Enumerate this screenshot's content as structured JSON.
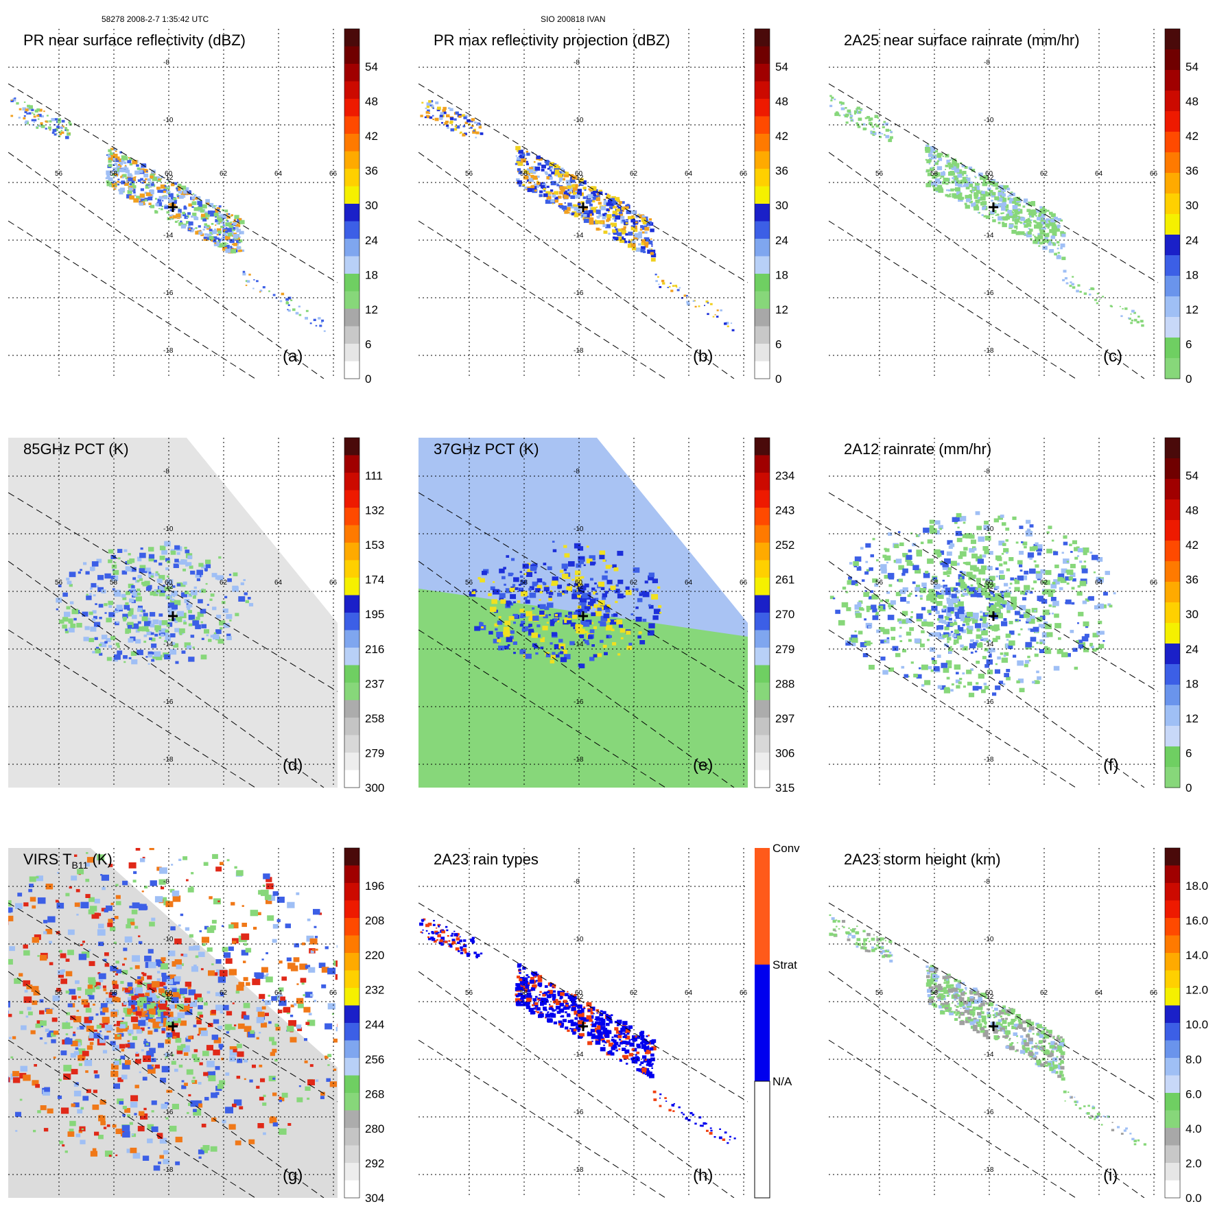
{
  "header": {
    "left": "58278 2008-2-7 1:35:42 UTC",
    "center": "SIO 200818 IVAN"
  },
  "chart_data": [
    {
      "id": "a",
      "type": "heatmap",
      "title": "PR near surface reflectivity (dBZ)",
      "panel_label": "(a)",
      "colorbar_ticks": [
        "54",
        "48",
        "42",
        "36",
        "30",
        "24",
        "18",
        "12",
        "6",
        "0"
      ],
      "colorbar_scale": "pr",
      "field": "pr_swath",
      "palette": [
        "#87d77a",
        "#3c5fe6",
        "#9fbff5",
        "#f0a020"
      ],
      "lon_labels": [
        "56",
        "58",
        "60",
        "62",
        "64",
        "66"
      ],
      "lat_labels": [
        "-8",
        "-10",
        "-12",
        "-14",
        "-16",
        "-18"
      ]
    },
    {
      "id": "b",
      "type": "heatmap",
      "title": "PR max reflectivity projection (dBZ)",
      "panel_label": "(b)",
      "colorbar_ticks": [
        "54",
        "48",
        "42",
        "36",
        "30",
        "24",
        "18",
        "12",
        "6",
        "0"
      ],
      "colorbar_scale": "pr",
      "field": "pr_swath",
      "palette": [
        "#1c2fd9",
        "#3c5fe6",
        "#9fbff5",
        "#f0a020",
        "#f0d020"
      ],
      "lon_labels": [
        "56",
        "58",
        "60",
        "62",
        "64",
        "66"
      ],
      "lat_labels": [
        "-8",
        "-10",
        "-12",
        "-14",
        "-16",
        "-18"
      ]
    },
    {
      "id": "c",
      "type": "heatmap",
      "title": "2A25 near surface rainrate (mm/hr)",
      "panel_label": "(c)",
      "colorbar_ticks": [
        "54",
        "48",
        "42",
        "36",
        "30",
        "24",
        "18",
        "12",
        "6",
        "0"
      ],
      "colorbar_scale": "rain",
      "field": "pr_swath",
      "palette": [
        "#87d77a",
        "#87d77a",
        "#9fbff5"
      ],
      "lon_labels": [
        "56",
        "58",
        "60",
        "62",
        "64",
        "66"
      ],
      "lat_labels": [
        "-8",
        "-10",
        "-12",
        "-14",
        "-16",
        "-18"
      ]
    },
    {
      "id": "d",
      "type": "heatmap",
      "title": "85GHz PCT (K)",
      "panel_label": "(d)",
      "colorbar_ticks": [
        "111",
        "132",
        "153",
        "174",
        "195",
        "216",
        "237",
        "258",
        "279",
        "300"
      ],
      "colorbar_scale": "pct",
      "field": "tmi_ring",
      "background": "#e4e4e4",
      "palette": [
        "#87d77a",
        "#9fbff5",
        "#3c5fe6"
      ],
      "lon_labels": [
        "56",
        "58",
        "60",
        "62",
        "64",
        "66"
      ],
      "lat_labels": [
        "-8",
        "-10",
        "-12",
        "-14",
        "-16",
        "-18"
      ]
    },
    {
      "id": "e",
      "type": "heatmap",
      "title": "37GHz PCT (K)",
      "panel_label": "(e)",
      "colorbar_ticks": [
        "234",
        "243",
        "252",
        "261",
        "270",
        "279",
        "288",
        "297",
        "306",
        "315"
      ],
      "colorbar_scale": "pct",
      "field": "tmi_full37",
      "background": "#a9c3f3",
      "palette": [
        "#1c2fd9",
        "#3c5fe6",
        "#f0e020"
      ],
      "lon_labels": [
        "56",
        "58",
        "60",
        "62",
        "64",
        "66"
      ],
      "lat_labels": [
        "-8",
        "-10",
        "-12",
        "-14",
        "-16",
        "-18"
      ]
    },
    {
      "id": "f",
      "type": "heatmap",
      "title": "2A12 rainrate (mm/hr)",
      "panel_label": "(f)",
      "colorbar_ticks": [
        "54",
        "48",
        "42",
        "36",
        "30",
        "24",
        "18",
        "12",
        "6",
        "0"
      ],
      "colorbar_scale": "rain",
      "field": "tmi_blob",
      "palette": [
        "#87d77a",
        "#87d77a",
        "#9fbff5",
        "#3c5fe6"
      ],
      "lon_labels": [
        "56",
        "58",
        "60",
        "62",
        "64",
        "66"
      ],
      "lat_labels": [
        "-8",
        "-10",
        "-12",
        "-14",
        "-16",
        "-18"
      ]
    },
    {
      "id": "g",
      "type": "heatmap",
      "title": "VIRS T",
      "title_sub": "B11",
      "title_tail": " (K)",
      "panel_label": "(g)",
      "colorbar_ticks": [
        "196",
        "208",
        "220",
        "232",
        "244",
        "256",
        "268",
        "280",
        "292",
        "304"
      ],
      "colorbar_scale": "ir",
      "field": "virs",
      "background": "#dcdcdc",
      "palette": [
        "#e02818",
        "#f07818",
        "#3c5fe6",
        "#9fbff5",
        "#87d77a"
      ],
      "lon_labels": [
        "56",
        "58",
        "60",
        "62",
        "64",
        "66"
      ],
      "lat_labels": [
        "-8",
        "-10",
        "-12",
        "-14",
        "-16",
        "-18"
      ]
    },
    {
      "id": "h",
      "type": "heatmap",
      "title": "2A23 rain types",
      "panel_label": "(h)",
      "colorbar_ticks": [
        "Conv",
        "Strat",
        "N/A"
      ],
      "colorbar_scale": "types",
      "field": "pr_swath",
      "palette": [
        "#0000ee",
        "#0000ee",
        "#0000ee",
        "#f04010"
      ],
      "lon_labels": [
        "56",
        "58",
        "60",
        "62",
        "64",
        "66"
      ],
      "lat_labels": [
        "-8",
        "-10",
        "-12",
        "-14",
        "-16",
        "-18"
      ]
    },
    {
      "id": "i",
      "type": "heatmap",
      "title": "2A23 storm height (km)",
      "panel_label": "(i)",
      "colorbar_ticks": [
        "18.0",
        "16.0",
        "14.0",
        "12.0",
        "10.0",
        "8.0",
        "6.0",
        "4.0",
        "2.0",
        "0.0"
      ],
      "colorbar_scale": "height",
      "field": "pr_swath",
      "palette": [
        "#87d77a",
        "#9fbff5",
        "#a0a0a0",
        "#87d77a"
      ],
      "lon_labels": [
        "56",
        "58",
        "60",
        "62",
        "64",
        "66"
      ],
      "lat_labels": [
        "-8",
        "-10",
        "-12",
        "-14",
        "-16",
        "-18"
      ]
    }
  ]
}
